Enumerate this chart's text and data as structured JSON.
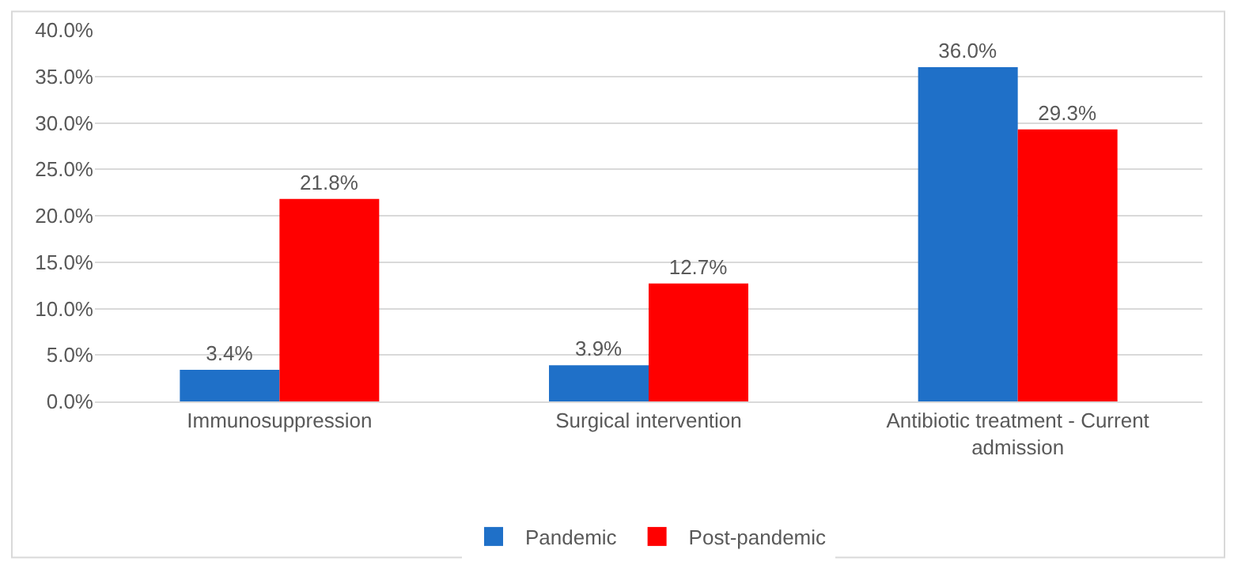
{
  "chart_data": {
    "type": "bar",
    "categories": [
      "Immunosuppression",
      "Surgical intervention",
      "Antibiotic treatment - Current admission"
    ],
    "series": [
      {
        "name": "Pandemic",
        "color": "#1f70c8",
        "values": [
          3.4,
          3.9,
          36.0
        ],
        "value_labels": [
          "3.4%",
          "3.9%",
          "36.0%"
        ]
      },
      {
        "name": "Post-pandemic",
        "color": "#ff0000",
        "values": [
          21.8,
          12.7,
          29.3
        ],
        "value_labels": [
          "21.8%",
          "12.7%",
          "29.3%"
        ]
      }
    ],
    "ylim": [
      0,
      40
    ],
    "yticks": [
      {
        "value": 0,
        "label": "0.0%"
      },
      {
        "value": 5,
        "label": "5.0%"
      },
      {
        "value": 10,
        "label": "10.0%"
      },
      {
        "value": 15,
        "label": "15.0%"
      },
      {
        "value": 20,
        "label": "20.0%"
      },
      {
        "value": 25,
        "label": "25.0%"
      },
      {
        "value": 30,
        "label": "30.0%"
      },
      {
        "value": 35,
        "label": "35.0%"
      },
      {
        "value": 40,
        "label": "40.0%"
      }
    ],
    "grid": "y",
    "legend": "bottom"
  }
}
